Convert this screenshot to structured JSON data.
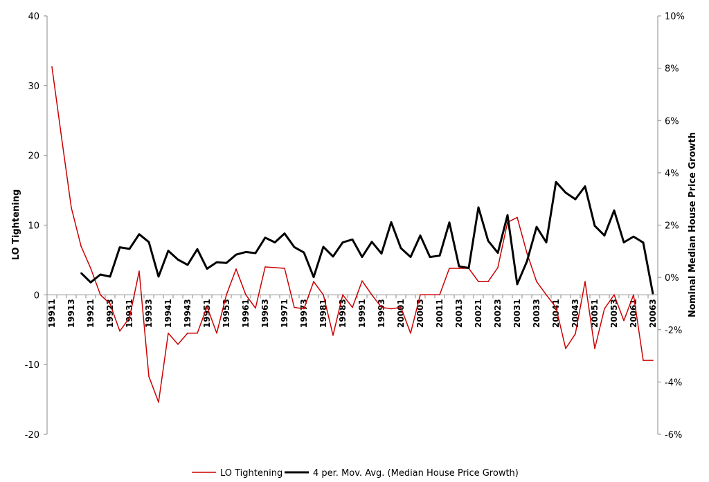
{
  "chart_data": {
    "type": "line",
    "title": "",
    "categories": [
      "19911",
      "19912",
      "19913",
      "19914",
      "19921",
      "19922",
      "19923",
      "19924",
      "19931",
      "19932",
      "19933",
      "19934",
      "19941",
      "19942",
      "19943",
      "19944",
      "19951",
      "19952",
      "19953",
      "19954",
      "19961",
      "19962",
      "19963",
      "19964",
      "19971",
      "19972",
      "19973",
      "19974",
      "19981",
      "19982",
      "19983",
      "19984",
      "19991",
      "19992",
      "19993",
      "19994",
      "20001",
      "20002",
      "20003",
      "20004",
      "20011",
      "20012",
      "20013",
      "20014",
      "20021",
      "20022",
      "20023",
      "20024",
      "20031",
      "20032",
      "20033",
      "20034",
      "20041",
      "20042",
      "20043",
      "20044",
      "20051",
      "20052",
      "20053",
      "20054",
      "20061",
      "20062",
      "20063"
    ],
    "category_labels_shown": [
      "19911",
      "19913",
      "19921",
      "19923",
      "19931",
      "19933",
      "19941",
      "19943",
      "19951",
      "19953",
      "19961",
      "19963",
      "19971",
      "19973",
      "19981",
      "19983",
      "19991",
      "19993",
      "20001",
      "20003",
      "20011",
      "20013",
      "20021",
      "20023",
      "20031",
      "20033",
      "20041",
      "20043",
      "20051",
      "20053",
      "20061",
      "20063"
    ],
    "left_axis": {
      "label": "LO Tightening",
      "min": -20,
      "max": 40,
      "ticks": [
        "-20",
        "-10",
        "0",
        "10",
        "20",
        "30",
        "40"
      ]
    },
    "right_axis": {
      "label": "Nominal Median House Price Growth",
      "min": -6,
      "max": 10,
      "ticks": [
        "-6%",
        "-4%",
        "-2%",
        "0%",
        "2%",
        "4%",
        "6%",
        "8%",
        "10%"
      ]
    },
    "series": [
      {
        "name": "LO Tightening",
        "axis": "left",
        "color": "#cc0000",
        "values": [
          32.7,
          22.5,
          12.5,
          7.0,
          3.8,
          0.0,
          -1.3,
          -5.2,
          -3.3,
          3.4,
          -11.7,
          -15.4,
          -5.5,
          -7.1,
          -5.5,
          -5.5,
          -1.7,
          -5.5,
          0.0,
          3.7,
          0.0,
          -1.9,
          4.0,
          3.9,
          3.8,
          -1.8,
          -2.0,
          1.9,
          0.0,
          -5.8,
          0.0,
          -1.8,
          2.0,
          0.0,
          -1.8,
          -2.0,
          -1.8,
          -5.5,
          0.0,
          0.0,
          0.0,
          3.8,
          3.8,
          3.8,
          1.9,
          1.9,
          3.9,
          10.4,
          11.1,
          6.0,
          1.9,
          0.0,
          -1.8,
          -7.7,
          -5.6,
          1.9,
          -7.7,
          -2.0,
          0.0,
          -3.7,
          0.0,
          -9.4,
          -9.4
        ]
      },
      {
        "name": "4 per. Mov. Avg. (Median House Price Growth)",
        "axis": "right",
        "color": "#000000",
        "values": [
          null,
          null,
          null,
          0.17,
          -0.19,
          0.11,
          0.03,
          1.15,
          1.09,
          1.65,
          1.35,
          0.03,
          1.02,
          0.68,
          0.48,
          1.08,
          0.33,
          0.58,
          0.55,
          0.87,
          0.97,
          0.93,
          1.52,
          1.34,
          1.68,
          1.16,
          0.95,
          0.01,
          1.17,
          0.8,
          1.34,
          1.45,
          0.78,
          1.36,
          0.91,
          2.11,
          1.12,
          0.78,
          1.6,
          0.78,
          0.83,
          2.1,
          0.42,
          0.36,
          2.68,
          1.4,
          0.94,
          2.38,
          -0.26,
          0.61,
          1.93,
          1.34,
          3.65,
          3.24,
          2.99,
          3.48,
          1.97,
          1.6,
          2.56,
          1.34,
          1.56,
          1.33,
          -0.63
        ]
      }
    ],
    "grid": false,
    "legend": {
      "position": "bottom",
      "entries": [
        "LO Tightening",
        "4 per. Mov. Avg. (Median House Price Growth)"
      ]
    }
  }
}
